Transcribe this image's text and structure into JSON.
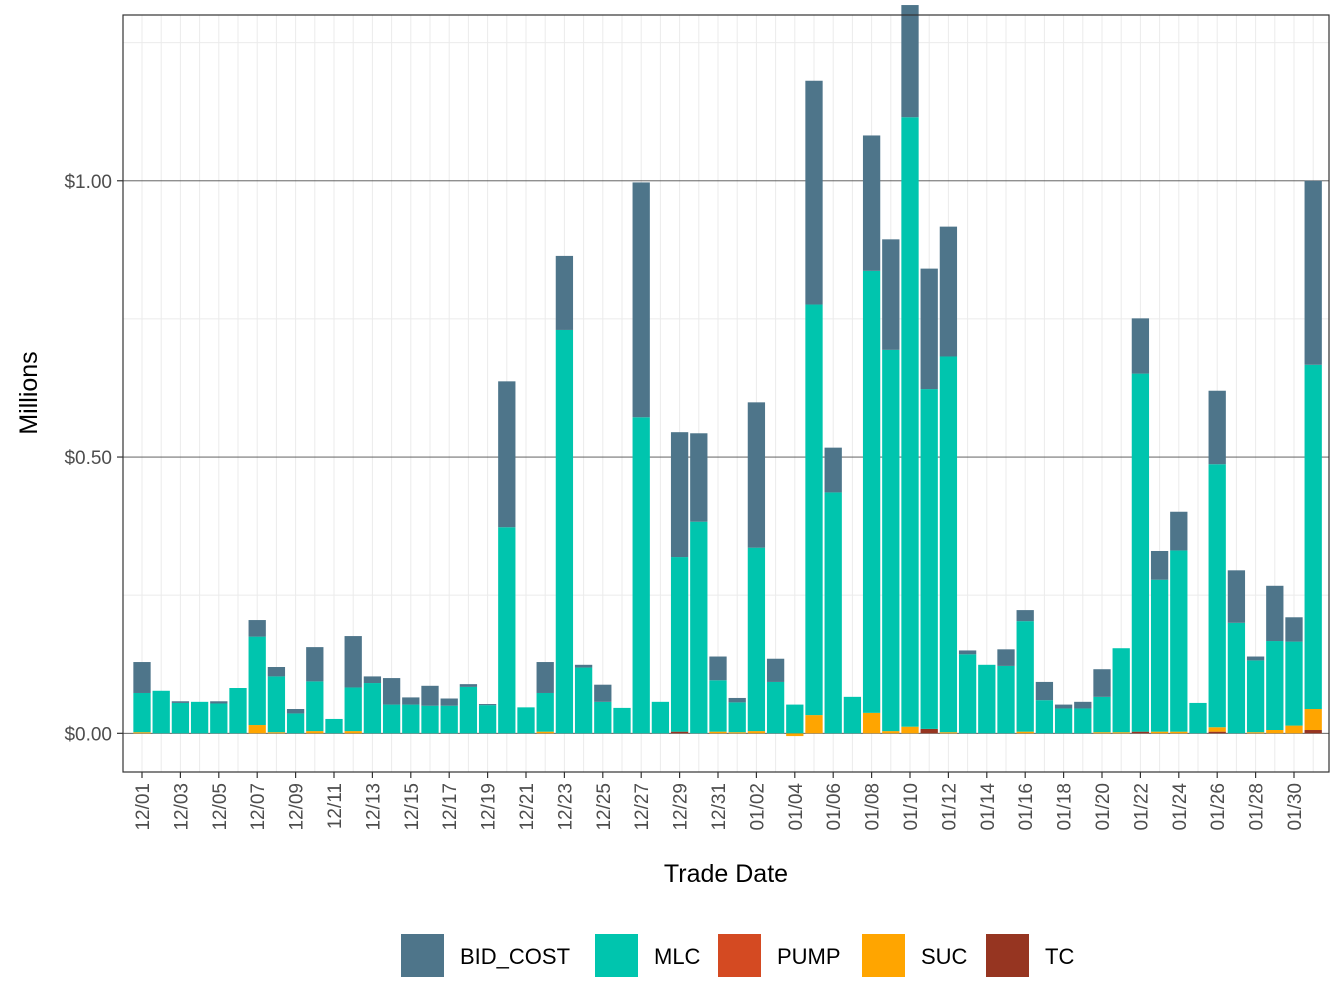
{
  "chart_data": {
    "type": "bar",
    "stacked": true,
    "title": "",
    "xlabel": "Trade Date",
    "ylabel": "Millions",
    "ylim": [
      -0.07,
      1.3
    ],
    "y_ticks": [
      {
        "value": 0.0,
        "label": "$0.00"
      },
      {
        "value": 0.5,
        "label": "$0.50"
      },
      {
        "value": 1.0,
        "label": "$1.00"
      }
    ],
    "grid": true,
    "legend_position": "bottom",
    "categories": [
      "12/01",
      "12/02",
      "12/03",
      "12/04",
      "12/05",
      "12/06",
      "12/07",
      "12/08",
      "12/09",
      "12/10",
      "12/11",
      "12/12",
      "12/13",
      "12/14",
      "12/15",
      "12/16",
      "12/17",
      "12/18",
      "12/19",
      "12/20",
      "12/21",
      "12/22",
      "12/23",
      "12/24",
      "12/25",
      "12/26",
      "12/27",
      "12/28",
      "12/29",
      "12/30",
      "12/31",
      "01/01",
      "01/02",
      "01/03",
      "01/04",
      "01/05",
      "01/06",
      "01/07",
      "01/08",
      "01/09",
      "01/10",
      "01/11",
      "01/12",
      "01/13",
      "01/14",
      "01/15",
      "01/16",
      "01/17",
      "01/18",
      "01/19",
      "01/20",
      "01/21",
      "01/22",
      "01/23",
      "01/24",
      "01/25",
      "01/26",
      "01/27",
      "01/28",
      "01/29",
      "01/30",
      "01/31"
    ],
    "tick_labels": [
      "12/01",
      "12/03",
      "12/05",
      "12/07",
      "12/09",
      "12/11",
      "12/13",
      "12/15",
      "12/17",
      "12/19",
      "12/21",
      "12/23",
      "12/25",
      "12/27",
      "12/29",
      "12/31",
      "01/02",
      "01/04",
      "01/06",
      "01/08",
      "01/10",
      "01/12",
      "01/14",
      "01/16",
      "01/18",
      "01/20",
      "01/22",
      "01/24",
      "01/26",
      "01/28",
      "01/30"
    ],
    "series": [
      {
        "name": "TC",
        "color": "#963521",
        "values": [
          0,
          0,
          0,
          0,
          0,
          0,
          0,
          0,
          0,
          0,
          0,
          0,
          0,
          0,
          0,
          0,
          0,
          0,
          0,
          0,
          0,
          0,
          0,
          0,
          0,
          0,
          0,
          0,
          0.003,
          0,
          0,
          0,
          0,
          0,
          0,
          0,
          0,
          0,
          0,
          0,
          0,
          0.008,
          0,
          0,
          0,
          0,
          0,
          0,
          0,
          0,
          0,
          0,
          0.003,
          0,
          0,
          0,
          0.003,
          0,
          0,
          0,
          0,
          0.006
        ]
      },
      {
        "name": "PUMP",
        "color": "#D44A22",
        "values": [
          0,
          0,
          0,
          0,
          0,
          0,
          0,
          0,
          0,
          0,
          0,
          0,
          0,
          0,
          0,
          0,
          0,
          0,
          0,
          0,
          0,
          0,
          0,
          0,
          0,
          0,
          0,
          0,
          0,
          0,
          0,
          0,
          0,
          0,
          0,
          0,
          0,
          0,
          0,
          0,
          0,
          0,
          0,
          0,
          0,
          0,
          0,
          0,
          0,
          0,
          0,
          0,
          0,
          0,
          0,
          0,
          0,
          0,
          0,
          0,
          0,
          0
        ]
      },
      {
        "name": "SUC",
        "color": "#FFA500",
        "values": [
          0.002,
          0,
          0,
          0,
          0,
          0,
          0.015,
          0.002,
          0,
          0.004,
          0,
          0.004,
          0,
          0,
          0,
          0,
          0,
          0,
          0,
          0,
          0,
          0.003,
          0,
          0,
          0,
          0,
          0,
          0,
          0,
          0,
          0.003,
          0.002,
          0.004,
          0,
          -0.005,
          0.033,
          0,
          0,
          0.037,
          0.004,
          0.012,
          0,
          0.002,
          0,
          0,
          0,
          0.003,
          0,
          0,
          0,
          0.002,
          0.002,
          0,
          0.003,
          0.003,
          0,
          0.008,
          0,
          0.002,
          0.006,
          0.014,
          0.038
        ]
      },
      {
        "name": "MLC",
        "color": "#00C5AE",
        "values": [
          0.071,
          0.077,
          0.055,
          0.057,
          0.054,
          0.082,
          0.16,
          0.101,
          0.036,
          0.09,
          0.026,
          0.079,
          0.091,
          0.052,
          0.052,
          0.05,
          0.05,
          0.084,
          0.051,
          0.373,
          0.047,
          0.07,
          0.73,
          0.119,
          0.057,
          0.046,
          0.572,
          0.057,
          0.316,
          0.383,
          0.093,
          0.054,
          0.332,
          0.093,
          0.052,
          0.743,
          0.436,
          0.066,
          0.8,
          0.69,
          1.103,
          0.615,
          0.68,
          0.143,
          0.124,
          0.122,
          0.2,
          0.06,
          0.045,
          0.045,
          0.064,
          0.152,
          0.648,
          0.275,
          0.328,
          0.055,
          0.476,
          0.2,
          0.13,
          0.161,
          0.152,
          0.623
        ]
      },
      {
        "name": "BID_COST",
        "color": "#4E758A",
        "values": [
          0.056,
          0,
          0.003,
          0,
          0.004,
          0,
          0.03,
          0.017,
          0.008,
          0.062,
          0,
          0.093,
          0.012,
          0.048,
          0.013,
          0.036,
          0.013,
          0.005,
          0.002,
          0.264,
          0,
          0.056,
          0.134,
          0.005,
          0.031,
          0,
          0.425,
          0,
          0.226,
          0.16,
          0.043,
          0.008,
          0.263,
          0.042,
          0,
          0.405,
          0.081,
          0,
          0.245,
          0.2,
          0.203,
          0.218,
          0.235,
          0.007,
          0,
          0.03,
          0.02,
          0.033,
          0.007,
          0.012,
          0.05,
          0,
          0.1,
          0.052,
          0.07,
          0,
          0.133,
          0.095,
          0.007,
          0.1,
          0.044,
          0.333
        ]
      }
    ],
    "legend_order": [
      "BID_COST",
      "MLC",
      "PUMP",
      "SUC",
      "TC"
    ]
  }
}
